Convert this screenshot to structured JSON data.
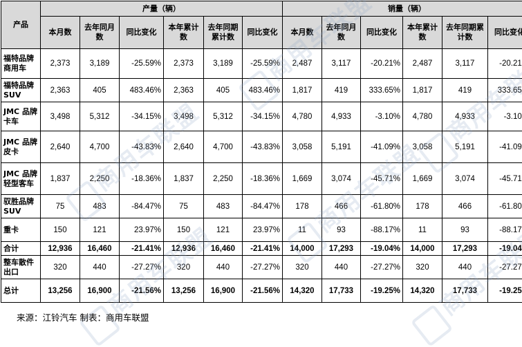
{
  "header": {
    "product": "产品",
    "production_group": "产量（辆）",
    "sales_group": "销量（辆）",
    "columns": [
      "本月数",
      "去年同月数",
      "同比变化",
      "本年累计数",
      "去年同期累计数",
      "同比变化"
    ]
  },
  "rows": [
    {
      "label": "福特品牌商用车",
      "cells": [
        "2,373",
        "3,189",
        "-25.59%",
        "2,373",
        "3,189",
        "-25.59%",
        "2,487",
        "3,117",
        "-20.21%",
        "2,487",
        "3,117",
        "-20.21%"
      ]
    },
    {
      "label": "福特品牌SUV",
      "cells": [
        "2,363",
        "405",
        "483.46%",
        "2,363",
        "405",
        "483.46%",
        "1,817",
        "419",
        "333.65%",
        "1,817",
        "419",
        "333.65%"
      ]
    },
    {
      "label": "JMC 品牌卡车",
      "cells": [
        "3,498",
        "5,312",
        "-34.15%",
        "3,498",
        "5,312",
        "-34.15%",
        "4,780",
        "4,933",
        "-3.10%",
        "4,780",
        "4,933",
        "-3.10%"
      ]
    },
    {
      "label": "JMC 品牌皮卡",
      "cells": [
        "2,640",
        "4,700",
        "-43.83%",
        "2,640",
        "4,700",
        "-43.83%",
        "3,058",
        "5,191",
        "-41.09%",
        "3,058",
        "5,191",
        "-41.09%"
      ]
    },
    {
      "label": "JMC 品牌轻型客车",
      "cells": [
        "1,837",
        "2,250",
        "-18.36%",
        "1,837",
        "2,250",
        "-18.36%",
        "1,669",
        "3,074",
        "-45.71%",
        "1,669",
        "3,074",
        "-45.71%"
      ]
    },
    {
      "label": "驭胜品牌SUV",
      "cells": [
        "75",
        "483",
        "-84.47%",
        "75",
        "483",
        "-84.47%",
        "178",
        "466",
        "-61.80%",
        "178",
        "466",
        "-61.80%"
      ]
    },
    {
      "label": "重卡",
      "cells": [
        "150",
        "121",
        "23.97%",
        "150",
        "121",
        "23.97%",
        "11",
        "93",
        "-88.17%",
        "11",
        "93",
        "-88.17%"
      ]
    },
    {
      "label": "合计",
      "bold": true,
      "cells": [
        "12,936",
        "16,460",
        "-21.41%",
        "12,936",
        "16,460",
        "-21.41%",
        "14,000",
        "17,293",
        "-19.04%",
        "14,000",
        "17,293",
        "-19.04%"
      ]
    },
    {
      "label": "整车散件出口",
      "cells": [
        "320",
        "440",
        "-27.27%",
        "320",
        "440",
        "-27.27%",
        "320",
        "440",
        "-27.27%",
        "320",
        "440",
        "-27.27%"
      ]
    },
    {
      "label": "总计",
      "bold": true,
      "cells": [
        "13,256",
        "16,900",
        "-21.56%",
        "13,256",
        "16,900",
        "-21.56%",
        "14,320",
        "17,733",
        "-19.25%",
        "14,320",
        "17,733",
        "-19.25%"
      ]
    }
  ],
  "source": "来源：江铃汽车  制表：商用车联盟",
  "watermark": {
    "text": "商用车联盟",
    "color": "#8ca5c3"
  }
}
